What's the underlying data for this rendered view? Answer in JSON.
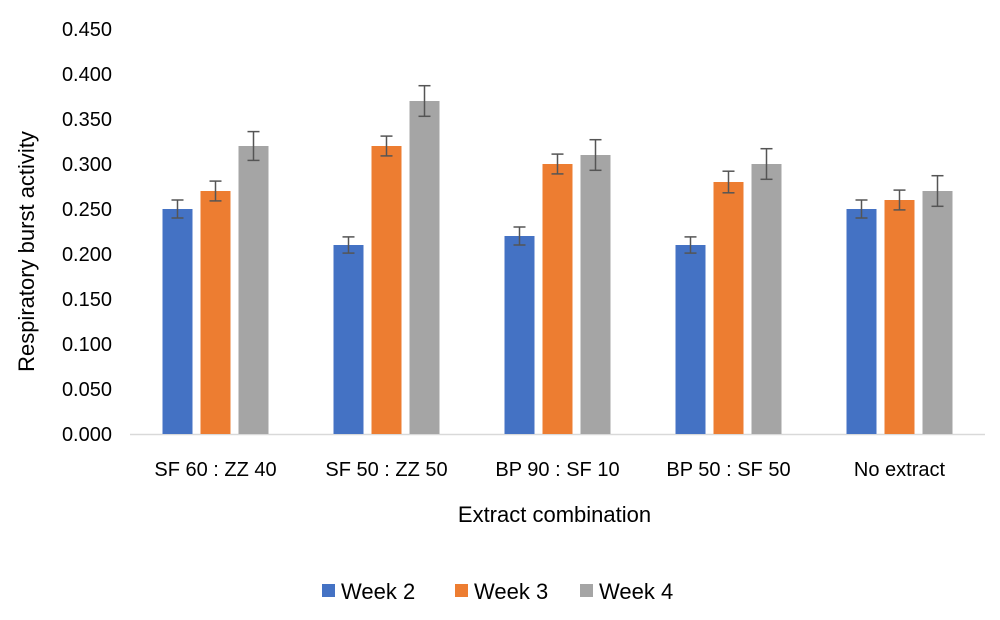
{
  "chart_data": {
    "type": "bar",
    "title": "",
    "xlabel": "Extract combination",
    "ylabel": "Respiratory burst activity",
    "ylim": [
      0,
      0.45
    ],
    "yticks": [
      "0.000",
      "0.050",
      "0.100",
      "0.150",
      "0.200",
      "0.250",
      "0.300",
      "0.350",
      "0.400",
      "0.450"
    ],
    "grid": false,
    "legend_position": "bottom",
    "categories": [
      "SF 60 : ZZ 40",
      "SF 50 : ZZ 50",
      "BP 90 : SF 10",
      "BP 50 : SF 50",
      "No extract"
    ],
    "series": [
      {
        "name": "Week 2",
        "color": "#4472C4",
        "values": [
          0.25,
          0.21,
          0.22,
          0.21,
          0.25
        ],
        "errors": [
          0.01,
          0.009,
          0.01,
          0.009,
          0.01
        ]
      },
      {
        "name": "Week 3",
        "color": "#ED7D31",
        "values": [
          0.27,
          0.32,
          0.3,
          0.28,
          0.26
        ],
        "errors": [
          0.011,
          0.011,
          0.011,
          0.012,
          0.011
        ]
      },
      {
        "name": "Week 4",
        "color": "#A5A5A5",
        "values": [
          0.32,
          0.37,
          0.31,
          0.3,
          0.27
        ],
        "errors": [
          0.016,
          0.017,
          0.017,
          0.017,
          0.017
        ]
      }
    ],
    "error_bar_color": "#555555"
  }
}
